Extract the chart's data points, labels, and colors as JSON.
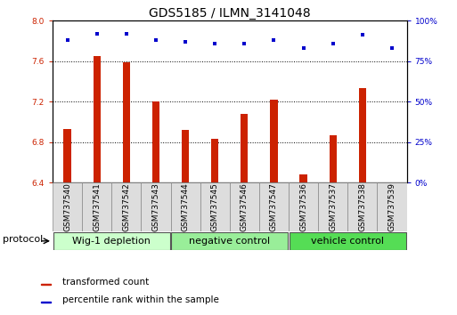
{
  "title": "GDS5185 / ILMN_3141048",
  "samples": [
    "GSM737540",
    "GSM737541",
    "GSM737542",
    "GSM737543",
    "GSM737544",
    "GSM737545",
    "GSM737546",
    "GSM737547",
    "GSM737536",
    "GSM737537",
    "GSM737538",
    "GSM737539"
  ],
  "bar_values": [
    6.93,
    7.65,
    7.59,
    7.2,
    6.92,
    6.83,
    7.08,
    7.22,
    6.48,
    6.87,
    7.33,
    6.4
  ],
  "percentile_values": [
    88,
    92,
    92,
    88,
    87,
    86,
    86,
    88,
    83,
    86,
    91,
    83
  ],
  "bar_color": "#cc2200",
  "dot_color": "#0000cc",
  "ylim_left": [
    6.4,
    8.0
  ],
  "ylim_right": [
    0,
    100
  ],
  "yticks_left": [
    6.4,
    6.8,
    7.2,
    7.6,
    8.0
  ],
  "yticks_right": [
    0,
    25,
    50,
    75,
    100
  ],
  "grid_values": [
    6.8,
    7.2,
    7.6
  ],
  "groups": [
    {
      "label": "Wig-1 depletion",
      "start": 0,
      "end": 3,
      "color": "#ccffcc"
    },
    {
      "label": "negative control",
      "start": 4,
      "end": 7,
      "color": "#99ee99"
    },
    {
      "label": "vehicle control",
      "start": 8,
      "end": 11,
      "color": "#55dd55"
    }
  ],
  "protocol_label": "protocol",
  "legend_bar_label": "transformed count",
  "legend_dot_label": "percentile rank within the sample",
  "bar_bottom": 6.4,
  "tick_label_fontsize": 6.5,
  "title_fontsize": 10,
  "group_label_fontsize": 8,
  "legend_fontsize": 7.5,
  "protocol_fontsize": 8
}
